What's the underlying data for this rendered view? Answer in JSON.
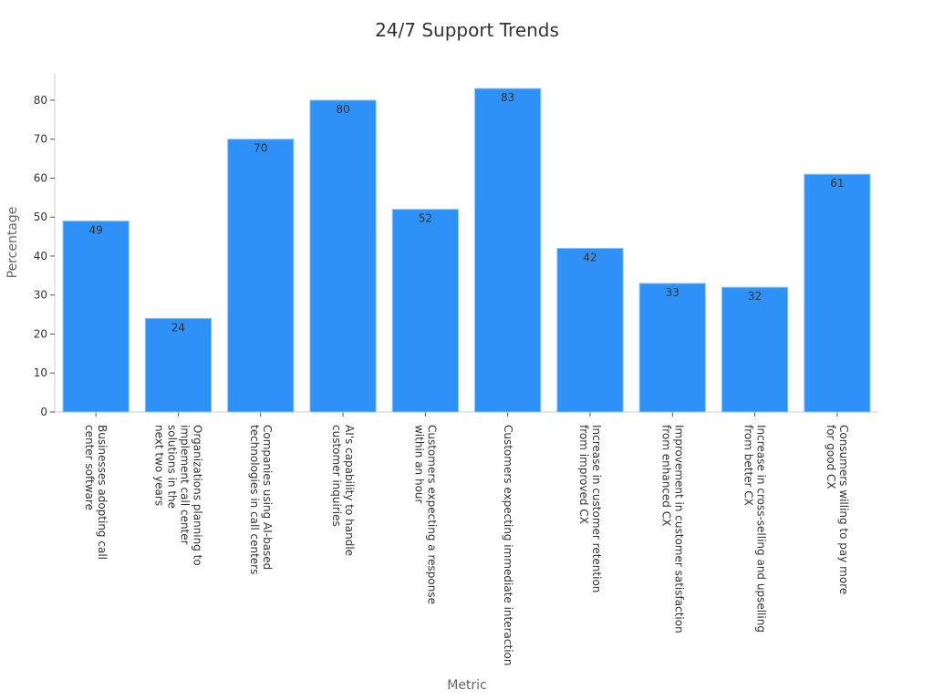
{
  "chart_data": {
    "type": "bar",
    "title": "24/7 Support Trends",
    "x_label": "Metric",
    "y_label": "Percentage",
    "categories": [
      "Businesses adopting call\ncenter software",
      "Organizations planning to\nimplement call center\nsolutions in the\nnext two years",
      "Companies using AI-based\ntechnologies in call centers",
      "AI's capability to handle\ncustomer inquiries",
      "Customers expecting a response\nwithin an hour",
      "Customers expecting immediate interaction",
      "Increase in customer retention\nfrom improved CX",
      "Improvement in customer satisfaction\nfrom enhanced CX",
      "Increase in cross-selling and upselling\nfrom better CX",
      "Consumers willing to pay more\nfor good CX"
    ],
    "values": [
      49,
      24,
      70,
      80,
      52,
      83,
      42,
      33,
      32,
      61
    ],
    "color": "#2e91f7",
    "ylim": [
      0,
      87
    ],
    "yticks": [
      0,
      10,
      20,
      30,
      40,
      50,
      60,
      70,
      80
    ]
  }
}
